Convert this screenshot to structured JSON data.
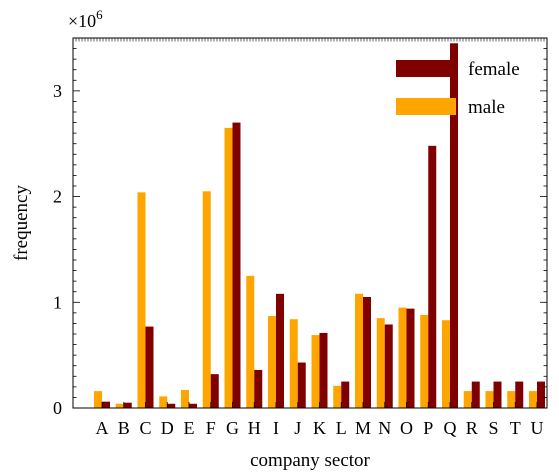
{
  "chart_data": {
    "type": "bar",
    "title": "",
    "xlabel": "company sector",
    "ylabel": "frequency",
    "y_multiplier": "×10",
    "y_multiplier_exp": "6",
    "ylim": [
      0,
      3.5
    ],
    "yticks": [
      0,
      1,
      2,
      3
    ],
    "legend_position": "top-right",
    "categories": [
      "A",
      "B",
      "C",
      "D",
      "E",
      "F",
      "G",
      "H",
      "I",
      "J",
      "K",
      "L",
      "M",
      "N",
      "O",
      "P",
      "Q",
      "R",
      "S",
      "T",
      "U"
    ],
    "series": [
      {
        "name": "male",
        "color": "#ffa500",
        "values": [
          0.16,
          0.04,
          2.04,
          0.11,
          0.17,
          2.05,
          2.65,
          1.25,
          0.87,
          0.84,
          0.69,
          0.21,
          1.08,
          0.85,
          0.95,
          0.88,
          0.83,
          0.16,
          0.16,
          0.16,
          0.16
        ]
      },
      {
        "name": "female",
        "color": "#800000",
        "values": [
          0.06,
          0.05,
          0.77,
          0.04,
          0.04,
          0.32,
          2.7,
          0.36,
          1.08,
          0.43,
          0.71,
          0.25,
          1.05,
          0.79,
          0.94,
          2.48,
          3.45,
          0.25,
          0.25,
          0.25,
          0.25
        ]
      }
    ]
  }
}
